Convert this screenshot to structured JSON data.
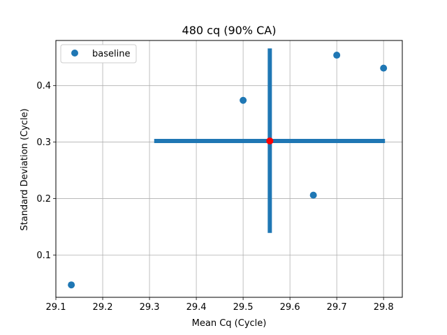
{
  "chart_data": {
    "type": "scatter",
    "title": "480 cq (90% CA)",
    "xlabel": "Mean Cq (Cycle)",
    "ylabel": "Standard Deviation (Cycle)",
    "xlim": [
      29.1,
      29.84
    ],
    "ylim": [
      0.025,
      0.48
    ],
    "xticks": [
      29.1,
      29.2,
      29.3,
      29.4,
      29.5,
      29.6,
      29.7,
      29.8
    ],
    "xtick_labels": [
      "29.1",
      "29.2",
      "29.3",
      "29.4",
      "29.5",
      "29.6",
      "29.7",
      "29.8"
    ],
    "yticks": [
      0.1,
      0.2,
      0.3,
      0.4
    ],
    "ytick_labels": [
      "0.1",
      "0.2",
      "0.3",
      "0.4"
    ],
    "grid": true,
    "legend_position": "top-left",
    "series": [
      {
        "name": "baseline",
        "color": "#1f77b4",
        "points": [
          {
            "x": 29.133,
            "y": 0.047
          },
          {
            "x": 29.5,
            "y": 0.374
          },
          {
            "x": 29.65,
            "y": 0.206
          },
          {
            "x": 29.7,
            "y": 0.454
          },
          {
            "x": 29.8,
            "y": 0.431
          }
        ]
      }
    ],
    "center": {
      "x": 29.557,
      "y": 0.302,
      "color": "#ff0000"
    },
    "error_cross": {
      "color": "#1f77b4",
      "x_range": [
        29.31,
        29.803
      ],
      "y_range": [
        0.139,
        0.466
      ]
    }
  }
}
